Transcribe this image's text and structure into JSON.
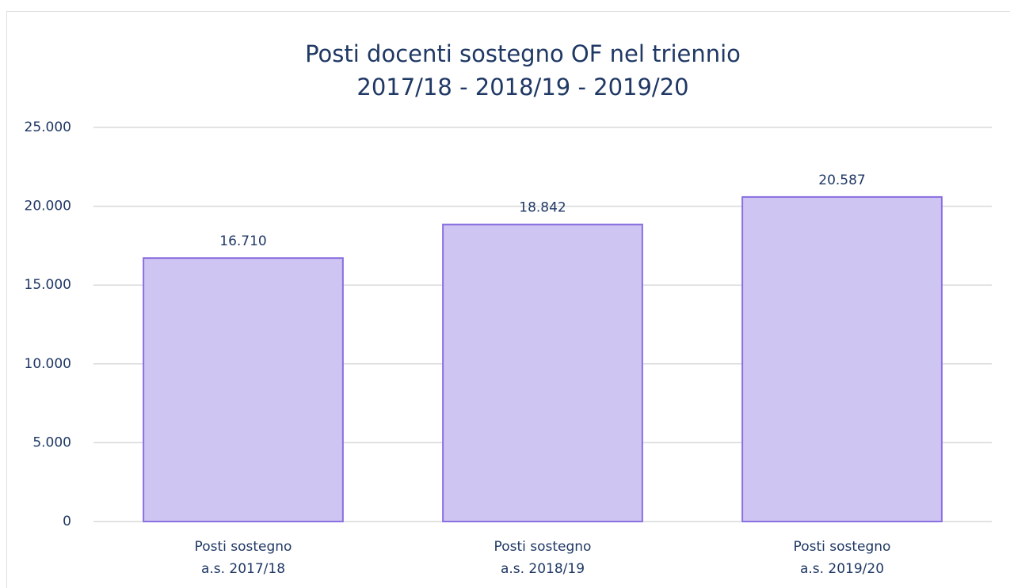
{
  "chart_data": {
    "type": "bar",
    "title": [
      "Posti docenti sostegno OF nel triennio",
      "2017/18 - 2018/19 - 2019/20"
    ],
    "categories": [
      [
        "Posti sostegno",
        "a.s. 2017/18"
      ],
      [
        "Posti sostegno",
        "a.s. 2018/19"
      ],
      [
        "Posti sostegno",
        "a.s. 2019/20"
      ]
    ],
    "values": [
      16710,
      18842,
      20587
    ],
    "value_labels": [
      "16.710",
      "18.842",
      "20.587"
    ],
    "color": "#cfc5f2",
    "edge_color": "#8a6fe0",
    "ylim": [
      0,
      25000
    ],
    "yticks": [
      0,
      {
        "value": 5000,
        "label": "5.000"
      },
      {
        "value": 10000,
        "label": "10.000"
      },
      {
        "value": 15000,
        "label": "15.000"
      },
      {
        "value": 20000,
        "label": "20.000"
      },
      {
        "value": 25000,
        "label": "25.000"
      }
    ],
    "grid": true
  }
}
